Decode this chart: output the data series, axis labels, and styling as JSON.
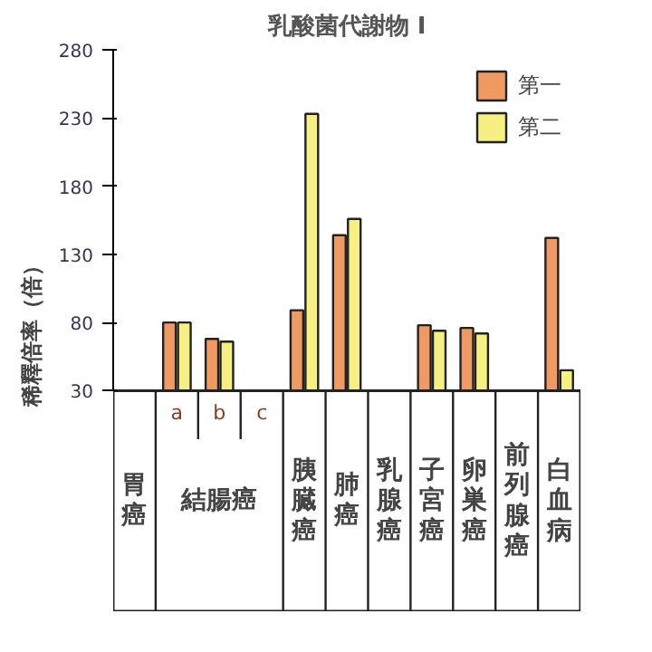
{
  "chart_data": {
    "type": "bar",
    "title": "乳酸菌代謝物 I",
    "ylabel": "稀釋倍率（倍）",
    "categories": [
      "胃癌",
      "a",
      "b",
      "c",
      "胰臓癌",
      "肺癌",
      "乳腺癌",
      "子宮癌",
      "卵巣癌",
      "前列腺癌",
      "白血病"
    ],
    "series": [
      {
        "name": "第一",
        "color": "#ef9a62",
        "values": [
          null,
          80,
          68,
          null,
          89,
          144,
          null,
          78,
          76,
          null,
          142
        ]
      },
      {
        "name": "第二",
        "color": "#f6ef82",
        "values": [
          null,
          80,
          66,
          null,
          233,
          156,
          null,
          74,
          72,
          null,
          45
        ]
      }
    ],
    "annotations": [
      "結腸癌"
    ],
    "ylim": [
      30,
      280
    ],
    "yticks": [
      30,
      80,
      130,
      180,
      230,
      280
    ],
    "legend": "top right",
    "grid": false
  }
}
